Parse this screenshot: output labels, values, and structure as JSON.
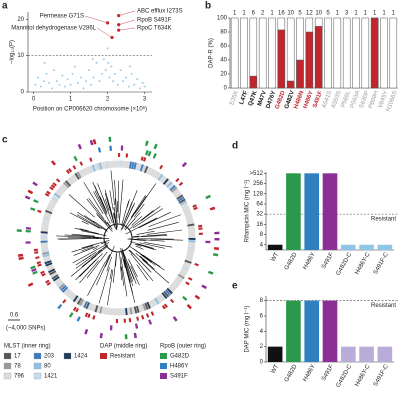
{
  "panel_labels": [
    "a",
    "b",
    "c",
    "d",
    "e"
  ],
  "chart_data": [
    {
      "type": "scatter",
      "xlabel": "Position on CP006620 chromosome (×10⁶)",
      "ylabel": "−log₁₀(P)",
      "xlim": [
        -0.15,
        3.2
      ],
      "xticks": [
        0,
        1,
        2,
        3
      ],
      "ylim": [
        0,
        22
      ],
      "yticks": [
        0,
        10,
        20
      ],
      "threshold": 10,
      "color": "#8cc3e6",
      "x": [
        0.05,
        0.12,
        0.2,
        0.28,
        0.35,
        0.42,
        0.5,
        0.55,
        0.63,
        0.7,
        0.78,
        0.85,
        0.92,
        1.0,
        1.05,
        1.12,
        1.2,
        1.28,
        1.35,
        1.42,
        1.5,
        1.55,
        1.62,
        1.7,
        1.78,
        1.85,
        1.9,
        1.95,
        2.0,
        2.02,
        2.05,
        2.1,
        2.15,
        2.2,
        2.28,
        2.35,
        2.42,
        2.5,
        2.58,
        2.65,
        2.72,
        2.8,
        2.88,
        2.95,
        3.0,
        0.3,
        1.6,
        2.6
      ],
      "values": [
        2,
        4,
        1.5,
        3,
        5,
        2.5,
        1,
        6,
        3,
        2,
        4.5,
        1.5,
        3.5,
        2,
        5,
        7,
        2.5,
        4,
        1,
        3,
        6,
        2,
        4,
        8,
        3,
        5,
        9,
        6,
        12,
        8,
        4,
        7,
        3,
        5,
        2,
        6,
        3,
        4,
        1.5,
        5,
        2,
        3.5,
        1,
        2.5,
        1.5,
        8,
        9,
        7
      ],
      "highlights": {
        "color": "#c0262c",
        "x": [
          2.0,
          2.3,
          2.12,
          2.3,
          2.3
        ],
        "values": [
          19,
          21,
          15,
          18.5,
          17
        ]
      },
      "annotations": [
        "Permease G71S",
        "ABC efflux I273S",
        "Mannitol dehydrogenase V286L",
        "RpoB S491F",
        "RpoC T634K"
      ]
    },
    {
      "type": "bar",
      "ylabel": "DAP-R (%)",
      "ylim": [
        0,
        100
      ],
      "yticks": [
        0,
        20,
        40,
        60,
        80,
        100
      ],
      "color": "#c0262c",
      "categories": [
        "E35K",
        "L47F",
        "Q47K",
        "M47V",
        "D476Y",
        "G482D",
        "G482V",
        "H486N",
        "H486Y",
        "S491F",
        "A541S",
        "A553S",
        "P569L",
        "P593A",
        "S630P",
        "P809H",
        "V845Y",
        "N1066S"
      ],
      "label_colors": [
        "#999",
        "#111",
        "#111",
        "#111",
        "#111",
        "#c0262c",
        "#111",
        "#c0262c",
        "#c0262c",
        "#c0262c",
        "#999",
        "#999",
        "#999",
        "#999",
        "#999",
        "#999",
        "#999",
        "#999"
      ],
      "counts": [
        1,
        1,
        6,
        2,
        1,
        16,
        10,
        5,
        12,
        10,
        5,
        1,
        3,
        1,
        1,
        1,
        1,
        1
      ],
      "values": [
        0,
        0,
        17,
        0,
        0,
        83,
        10,
        40,
        80,
        88,
        0,
        0,
        0,
        0,
        0,
        100,
        0,
        0
      ]
    },
    {
      "type": "bar",
      "log_base": 2,
      "ylabel": "Rifampicin MIC (mg l⁻¹)",
      "ylim": [
        2.8,
        560
      ],
      "yticks": [
        4,
        8,
        16,
        32,
        64,
        128,
        256,
        {
          "value": 512,
          "label": ">512"
        }
      ],
      "threshold": 32,
      "threshold_label": "Resistant",
      "categories": [
        "WT",
        "G482D",
        "H486Y",
        "S491F",
        "G482D-C",
        "H486Y-C",
        "S491F-C"
      ],
      "colors": [
        "#111",
        "#2a9a4a",
        "#2f7fc1",
        "#8b2f97",
        "#8fc6e8",
        "#8fc6e8",
        "#8fc6e8"
      ],
      "values": [
        4,
        512,
        512,
        512,
        4,
        4,
        4
      ]
    },
    {
      "type": "bar",
      "ylabel": "DAP MIC (mg l⁻¹)",
      "ylim": [
        0,
        8.6
      ],
      "yticks": [
        0,
        2,
        4,
        6,
        8
      ],
      "threshold": 8,
      "threshold_label": "Resistant",
      "categories": [
        "WT",
        "G482D",
        "H486Y",
        "S491F",
        "G482D-C",
        "H486Y-C",
        "S491F-C"
      ],
      "colors": [
        "#111",
        "#2a9a4a",
        "#2f7fc1",
        "#8b2f97",
        "#b9acd9",
        "#b9acd9",
        "#b9acd9"
      ],
      "values": [
        2,
        8,
        8,
        8,
        2,
        2,
        2
      ]
    }
  ],
  "panel_c": {
    "scale_label": "0.6",
    "scale_note": "(~4,000 SNPs)",
    "mlst_title": "MLST (inner ring)",
    "mlst": [
      {
        "label": "17",
        "color": "#555"
      },
      {
        "label": "78",
        "color": "#999"
      },
      {
        "label": "796",
        "color": "#ddd"
      },
      {
        "label": "203",
        "color": "#3a7bbf"
      },
      {
        "label": "80",
        "color": "#8fc0e3"
      },
      {
        "label": "1421",
        "color": "#c5dcef"
      },
      {
        "label": "1424",
        "color": "#1f3b5c"
      }
    ],
    "dap_title": "DAP (middle ring)",
    "dap": [
      {
        "label": "Resistant",
        "color": "#c0262c"
      }
    ],
    "rpob_title": "RpoB (outer ring)",
    "rpob": [
      {
        "label": "G482D",
        "color": "#2a9a4a"
      },
      {
        "label": "H486Y",
        "color": "#2f7fc1"
      },
      {
        "label": "S491F",
        "color": "#8b2f97"
      }
    ]
  }
}
